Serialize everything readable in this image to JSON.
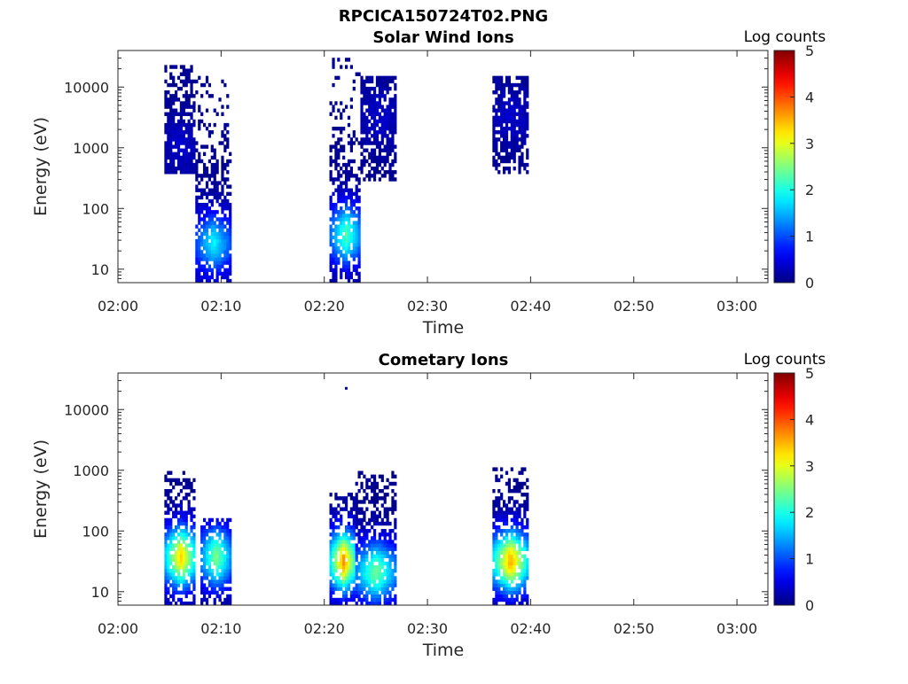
{
  "figure_title": "RPCICA150724T02.PNG",
  "chart_data": [
    {
      "type": "heatmap",
      "title": "Solar Wind Ions",
      "xlabel": "Time",
      "ylabel": "Energy (eV)",
      "x_ticks": [
        "02:00",
        "02:10",
        "02:20",
        "02:30",
        "02:40",
        "02:50",
        "03:00"
      ],
      "xlim": [
        "02:00",
        "03:03"
      ],
      "y_ticks": [
        "10",
        "100",
        "1000",
        "10000"
      ],
      "y_scale": "log",
      "ylim": [
        6,
        40000
      ],
      "colorbar": {
        "label": "Log counts",
        "ticks": [
          "0",
          "1",
          "2",
          "3",
          "4",
          "5"
        ],
        "range": [
          0,
          5
        ],
        "colormap": "jet"
      },
      "activity_intervals": [
        {
          "start_min": 4.5,
          "end_min": 7.5,
          "energy_min_eV": 400,
          "energy_max_eV": 22000,
          "peak_log_counts": 0.3,
          "peak_energy_eV": 1000
        },
        {
          "start_min": 7.5,
          "end_min": 10.8,
          "energy_min_eV": 6,
          "energy_max_eV": 15000,
          "peak_log_counts": 1.8,
          "peak_energy_eV": 25
        },
        {
          "start_min": 20.5,
          "end_min": 23.5,
          "energy_min_eV": 6,
          "energy_max_eV": 28000,
          "peak_log_counts": 2.2,
          "peak_energy_eV": 35
        },
        {
          "start_min": 23.5,
          "end_min": 26.8,
          "energy_min_eV": 300,
          "energy_max_eV": 15000,
          "peak_log_counts": 0.3,
          "peak_energy_eV": 3000
        },
        {
          "start_min": 36.3,
          "end_min": 39.6,
          "energy_min_eV": 400,
          "energy_max_eV": 15000,
          "peak_log_counts": 0.3,
          "peak_energy_eV": 3000
        }
      ]
    },
    {
      "type": "heatmap",
      "title": "Cometary Ions",
      "xlabel": "Time",
      "ylabel": "Energy (eV)",
      "x_ticks": [
        "02:00",
        "02:10",
        "02:20",
        "02:30",
        "02:40",
        "02:50",
        "03:00"
      ],
      "xlim": [
        "02:00",
        "03:03"
      ],
      "y_ticks": [
        "10",
        "100",
        "1000",
        "10000"
      ],
      "y_scale": "log",
      "ylim": [
        6,
        40000
      ],
      "colorbar": {
        "label": "Log counts",
        "ticks": [
          "0",
          "1",
          "2",
          "3",
          "4",
          "5"
        ],
        "range": [
          0,
          5
        ],
        "colormap": "jet"
      },
      "activity_intervals": [
        {
          "start_min": 4.5,
          "end_min": 7.5,
          "energy_min_eV": 6,
          "energy_max_eV": 900,
          "peak_log_counts": 3.3,
          "peak_energy_eV": 35
        },
        {
          "start_min": 8.0,
          "end_min": 10.8,
          "energy_min_eV": 6,
          "energy_max_eV": 150,
          "peak_log_counts": 2.5,
          "peak_energy_eV": 35
        },
        {
          "start_min": 20.5,
          "end_min": 23.0,
          "energy_min_eV": 6,
          "energy_max_eV": 400,
          "peak_log_counts": 3.6,
          "peak_energy_eV": 30
        },
        {
          "start_min": 23.0,
          "end_min": 26.8,
          "energy_min_eV": 6,
          "energy_max_eV": 900,
          "peak_log_counts": 2.4,
          "peak_energy_eV": 20
        },
        {
          "start_min": 36.3,
          "end_min": 39.6,
          "energy_min_eV": 6,
          "energy_max_eV": 1000,
          "peak_log_counts": 3.5,
          "peak_energy_eV": 30
        }
      ],
      "outlier_points": [
        {
          "time_min": 22.0,
          "energy_eV": 22000,
          "log_counts": 0.2
        }
      ]
    }
  ]
}
